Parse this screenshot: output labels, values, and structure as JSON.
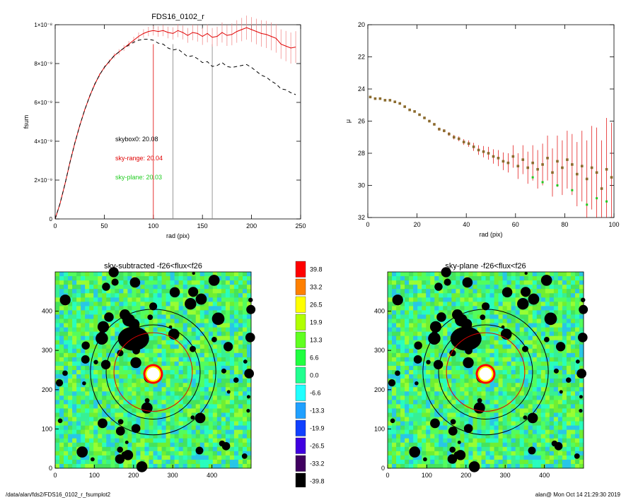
{
  "footer": {
    "path": "/data/alan/fds2/FDS16_0102_r_fsumplot2",
    "user_time": "alan@  Mon Oct 14 21:29:30 2019"
  },
  "chart_data": [
    {
      "type": "line",
      "title": "FDS16_0102_r",
      "xlabel": "rad (pix)",
      "ylabel": "fsum",
      "xlim": [
        0,
        250
      ],
      "ylim": [
        0,
        1e-08
      ],
      "xticks": [
        "0",
        "50",
        "100",
        "150",
        "200",
        "250"
      ],
      "yticks": [
        "0",
        "2×10⁻⁹",
        "4×10⁻⁹",
        "6×10⁻⁹",
        "8×10⁻⁹",
        "1×10⁻⁸"
      ],
      "ytick_values": [
        0,
        2e-09,
        4e-09,
        6e-09,
        8e-09,
        1e-08
      ],
      "vlines": [
        {
          "x": 100,
          "color": "#e00000"
        },
        {
          "x": 120,
          "color": "#808080"
        },
        {
          "x": 160,
          "color": "#808080"
        }
      ],
      "annotations": [
        {
          "text": "skybox0: 20.08",
          "color": "#000000"
        },
        {
          "text": "sky-range: 20.04",
          "color": "#e00000"
        },
        {
          "text": "sky-plane: 20.03",
          "color": "#22cc22"
        }
      ],
      "series": [
        {
          "style": "solid",
          "color": "#e00000",
          "x": [
            0,
            5,
            10,
            15,
            20,
            25,
            30,
            35,
            40,
            45,
            50,
            55,
            60,
            65,
            70,
            75,
            80,
            85,
            90,
            95,
            100,
            105,
            110,
            115,
            120,
            125,
            130,
            135,
            140,
            145,
            150,
            155,
            160,
            165,
            170,
            175,
            180,
            185,
            190,
            195,
            200,
            205,
            210,
            215,
            220,
            225,
            230,
            235,
            240,
            245
          ],
          "y": [
            0,
            8e-10,
            1.8e-09,
            2.9e-09,
            3.9e-09,
            4.8e-09,
            5.6e-09,
            6.3e-09,
            6.9e-09,
            7.4e-09,
            7.8e-09,
            8.1e-09,
            8.4e-09,
            8.6e-09,
            8.8e-09,
            9e-09,
            9.2e-09,
            9.4e-09,
            9.55e-09,
            9.65e-09,
            9.7e-09,
            9.65e-09,
            9.7e-09,
            9.6e-09,
            9.55e-09,
            9.7e-09,
            9.6e-09,
            9.45e-09,
            9.6e-09,
            9.55e-09,
            9.4e-09,
            9.55e-09,
            9.35e-09,
            9.4e-09,
            9.6e-09,
            9.45e-09,
            9.5e-09,
            9.65e-09,
            9.75e-09,
            9.85e-09,
            9.75e-09,
            9.65e-09,
            9.55e-09,
            9.5e-09,
            9.4e-09,
            9.3e-09,
            9e-09,
            8.9e-09,
            8.8e-09,
            8.85e-09
          ],
          "err": [
            0,
            2e-11,
            4e-11,
            5e-11,
            6e-11,
            7e-11,
            8e-11,
            8e-11,
            9e-11,
            1e-10,
            1e-10,
            1.2e-10,
            1.3e-10,
            1.4e-10,
            1.5e-10,
            1.6e-10,
            1.8e-10,
            2e-10,
            2.2e-10,
            2.4e-10,
            2.5e-10,
            2.7e-10,
            2.9e-10,
            3e-10,
            3.2e-10,
            3.4e-10,
            3.6e-10,
            3.8e-10,
            4e-10,
            4.2e-10,
            4.4e-10,
            4.6e-10,
            4.8e-10,
            5e-10,
            5.2e-10,
            5.4e-10,
            5.6e-10,
            5.8e-10,
            6e-10,
            6.2e-10,
            6.4e-10,
            6.6e-10,
            6.8e-10,
            7e-10,
            7.2e-10,
            7.4e-10,
            7.6e-10,
            7.8e-10,
            8e-10,
            8.2e-10
          ]
        },
        {
          "style": "dashed",
          "color": "#000000",
          "x": [
            0,
            5,
            10,
            15,
            20,
            25,
            30,
            35,
            40,
            45,
            50,
            55,
            60,
            65,
            70,
            75,
            80,
            85,
            90,
            95,
            100,
            105,
            110,
            115,
            120,
            125,
            130,
            135,
            140,
            145,
            150,
            155,
            160,
            165,
            170,
            175,
            180,
            185,
            190,
            195,
            200,
            205,
            210,
            215,
            220,
            225,
            230,
            235,
            240,
            245
          ],
          "y": [
            0,
            8e-10,
            1.8e-09,
            2.9e-09,
            3.9e-09,
            4.8e-09,
            5.6e-09,
            6.3e-09,
            6.9e-09,
            7.4e-09,
            7.8e-09,
            8.1e-09,
            8.4e-09,
            8.6e-09,
            8.8e-09,
            8.95e-09,
            9.1e-09,
            9.2e-09,
            9.25e-09,
            9.25e-09,
            9.2e-09,
            9.05e-09,
            9e-09,
            8.8e-09,
            8.7e-09,
            8.75e-09,
            8.55e-09,
            8.35e-09,
            8.4e-09,
            8.25e-09,
            8.05e-09,
            8.1e-09,
            7.85e-09,
            7.9e-09,
            8.05e-09,
            7.85e-09,
            7.8e-09,
            7.85e-09,
            7.9e-09,
            7.95e-09,
            7.8e-09,
            7.6e-09,
            7.4e-09,
            7.3e-09,
            7.1e-09,
            6.95e-09,
            6.7e-09,
            6.65e-09,
            6.5e-09,
            6.4e-09
          ]
        }
      ]
    },
    {
      "type": "scatter",
      "title": "",
      "xlabel": "rad (pix)",
      "ylabel": "μ",
      "xlim": [
        0,
        100
      ],
      "ylim": [
        20,
        32
      ],
      "y_inverted": true,
      "xticks": [
        "0",
        "20",
        "40",
        "60",
        "80",
        "100"
      ],
      "yticks": [
        "20",
        "22",
        "24",
        "26",
        "28",
        "30",
        "32"
      ],
      "series": [
        {
          "color": "#8b6b2e",
          "errcolor": "#e00000",
          "x": [
            1,
            3,
            5,
            7,
            9,
            11,
            13,
            15,
            17,
            19,
            21,
            23,
            25,
            27,
            29,
            31,
            33,
            35,
            37,
            39,
            41,
            43,
            45,
            47,
            49,
            51,
            53,
            55,
            57,
            59,
            61,
            63,
            65,
            67,
            69,
            71,
            73,
            75,
            77,
            79,
            81,
            83,
            85,
            87,
            89,
            91,
            93,
            95,
            97,
            99
          ],
          "y": [
            24.5,
            24.6,
            24.6,
            24.7,
            24.7,
            24.8,
            24.9,
            25.1,
            25.3,
            25.4,
            25.6,
            25.8,
            26.0,
            26.2,
            26.5,
            26.6,
            26.8,
            27.0,
            27.1,
            27.3,
            27.4,
            27.6,
            27.8,
            27.9,
            28.0,
            28.2,
            28.3,
            28.5,
            28.6,
            28.2,
            28.8,
            28.4,
            28.9,
            28.6,
            29.0,
            28.7,
            28.3,
            29.2,
            28.5,
            28.9,
            28.4,
            28.7,
            29.3,
            28.8,
            29.6,
            28.9,
            29.2,
            30.2,
            29.0,
            29.5
          ],
          "err": [
            0.05,
            0.05,
            0.05,
            0.05,
            0.05,
            0.05,
            0.05,
            0.05,
            0.06,
            0.06,
            0.06,
            0.07,
            0.08,
            0.08,
            0.1,
            0.1,
            0.12,
            0.14,
            0.15,
            0.18,
            0.2,
            0.25,
            0.3,
            0.35,
            0.4,
            0.45,
            0.5,
            0.55,
            0.6,
            0.7,
            0.8,
            0.9,
            1.0,
            1.1,
            1.2,
            1.3,
            1.4,
            1.5,
            1.6,
            1.7,
            1.8,
            1.9,
            2.0,
            2.2,
            2.4,
            2.6,
            2.8,
            3.0,
            3.2,
            3.4
          ]
        },
        {
          "color": "#22cc22",
          "x": [
            67,
            71,
            77,
            83,
            89,
            93,
            97
          ],
          "y": [
            29.5,
            29.8,
            30.0,
            30.3,
            31.2,
            30.8,
            31.0
          ]
        }
      ]
    },
    {
      "type": "heatmap",
      "title": "sky-subtracted -f26<flux<f26",
      "xlim": [
        0,
        500
      ],
      "ylim": [
        0,
        500
      ],
      "xticks": [
        "0",
        "100",
        "200",
        "300",
        "400"
      ],
      "yticks": [
        "0",
        "100",
        "200",
        "300",
        "400"
      ]
    },
    {
      "type": "heatmap",
      "title": "sky-plane -f26<flux<f26",
      "xlim": [
        0,
        500
      ],
      "ylim": [
        0,
        500
      ],
      "xticks": [
        "0",
        "100",
        "200",
        "300",
        "400"
      ],
      "yticks": [
        "0",
        "100",
        "200",
        "300",
        "400"
      ]
    }
  ],
  "colorbar": {
    "labels": [
      "39.8",
      "33.2",
      "26.5",
      "19.9",
      "13.3",
      "6.6",
      "0.0",
      "-6.6",
      "-13.3",
      "-19.9",
      "-26.5",
      "-33.2",
      "-39.8"
    ],
    "colors": [
      "#ff0000",
      "#ff8000",
      "#ffff00",
      "#b0ff00",
      "#60ff20",
      "#20ff40",
      "#20ff90",
      "#20ffff",
      "#20a0ff",
      "#1040ff",
      "#4000e0",
      "#400060",
      "#000000"
    ]
  }
}
